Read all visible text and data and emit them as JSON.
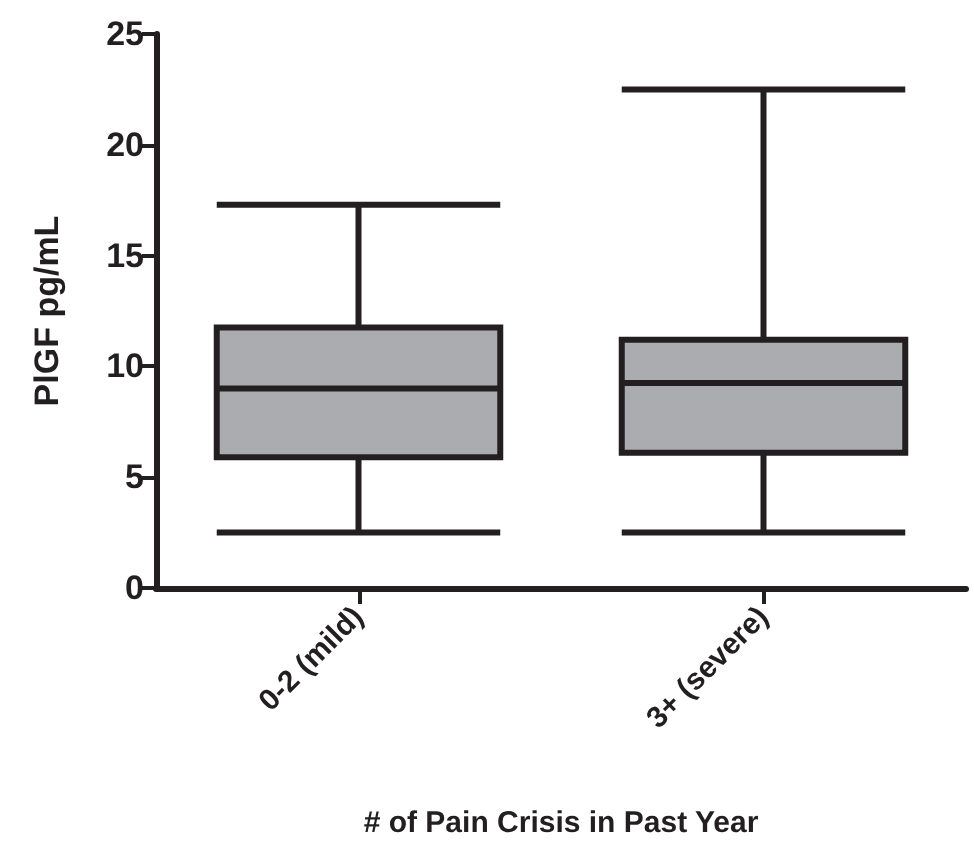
{
  "chart_data": {
    "type": "box",
    "xlabel": "# of Pain Crisis in Past Year",
    "ylabel": "PlGF pg/mL",
    "categories": [
      "0-2 (mild)",
      "3+ (severe)"
    ],
    "boxes": [
      {
        "low": 2.5,
        "q1": 5.9,
        "median": 9.0,
        "q3": 11.75,
        "high": 17.3
      },
      {
        "low": 2.5,
        "q1": 6.1,
        "median": 9.25,
        "q3": 11.2,
        "high": 22.5
      }
    ],
    "color": "#abacaf",
    "ylim": [
      0,
      25
    ],
    "yticks": [
      0,
      5,
      10,
      15,
      20,
      25
    ],
    "grid": false
  }
}
